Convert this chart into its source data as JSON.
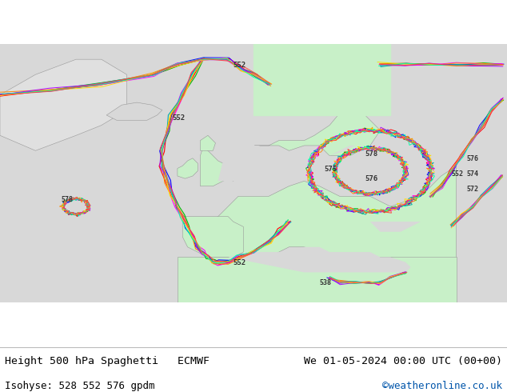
{
  "title_left": "Height 500 hPa Spaghetti   ECMWF",
  "title_right": "We 01-05-2024 00:00 UTC (00+00)",
  "subtitle_left": "Isohyse: 528 552 576 gpdm",
  "subtitle_right": "©weatheronline.co.uk",
  "subtitle_right_color": "#0055aa",
  "bg_color": "#ffffff",
  "land_color": "#c8f0c8",
  "sea_color": "#d8d8d8",
  "coast_color": "#999999",
  "text_color": "#000000",
  "label_color": "#333333",
  "font_size_title": 9.5,
  "font_size_subtitle": 9,
  "figure_width": 6.34,
  "figure_height": 4.9,
  "dpi": 100,
  "contour_colors": [
    "#ff0000",
    "#00bb00",
    "#0000ff",
    "#ff00ff",
    "#00aaaa",
    "#ff8800",
    "#aa00ff",
    "#ffdd00",
    "#00ffaa",
    "#ff4444"
  ],
  "contour_lw": 0.7,
  "contour_noise_lon": 0.15,
  "contour_noise_lat": 0.15,
  "n_members": 10
}
